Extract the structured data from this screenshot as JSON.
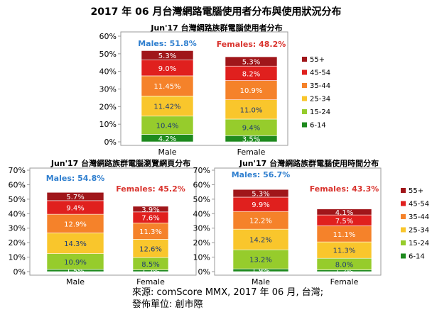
{
  "title": "2017 年 06 月台灣網路電腦使用者分布與使用狀況分布",
  "source_line1": "來源: comScore MMX, 2017 年 06 月, 台灣;",
  "source_line2": "發佈單位: 創市際",
  "legend_labels": [
    "55+",
    "45-54",
    "35-44",
    "25-34",
    "15-24",
    "6-14"
  ],
  "colors": {
    "6-14": "#1e8a1e",
    "15-24": "#96cc2c",
    "25-34": "#f9c62c",
    "35-44": "#f5822a",
    "45-54": "#e0201e",
    "55+": "#a0161a",
    "males_label": "#2f7fcf",
    "females_label": "#d9332d"
  },
  "chart_data": [
    {
      "type": "bar",
      "stacked": true,
      "title": "Jun'17 台灣網路族群電腦使用者分布",
      "categories": [
        "Male",
        "Female"
      ],
      "y_ticks": [
        "0%",
        "10%",
        "20%",
        "30%",
        "40%",
        "50%",
        "60%"
      ],
      "ylim": [
        0,
        60
      ],
      "legend": "right",
      "group_labels": [
        "Males: 51.8%",
        "Females: 48.2%"
      ],
      "series": [
        {
          "name": "6-14",
          "values": [
            4.2,
            3.5
          ],
          "labels": [
            "4.2%",
            "3.5%"
          ]
        },
        {
          "name": "15-24",
          "values": [
            10.4,
            9.4
          ],
          "labels": [
            "10.4%",
            "9.4%"
          ]
        },
        {
          "name": "25-34",
          "values": [
            11.42,
            11.0
          ],
          "labels": [
            "11.42%",
            "11.0%"
          ]
        },
        {
          "name": "35-44",
          "values": [
            11.45,
            10.9
          ],
          "labels": [
            "11.45%",
            "10.9%"
          ]
        },
        {
          "name": "45-54",
          "values": [
            9.0,
            8.2
          ],
          "labels": [
            "9.0%",
            "8.2%"
          ]
        },
        {
          "name": "55+",
          "values": [
            5.3,
            5.3
          ],
          "labels": [
            "5.3%",
            "5.3%"
          ]
        }
      ]
    },
    {
      "type": "bar",
      "stacked": true,
      "title": "Jun'17 台灣網路族群電腦瀏覽網頁分布",
      "categories": [
        "Male",
        "Female"
      ],
      "y_ticks": [
        "0%",
        "10%",
        "20%",
        "30%",
        "40%",
        "50%",
        "60%",
        "70%"
      ],
      "ylim": [
        0,
        70
      ],
      "legend": "none",
      "group_labels": [
        "Males: 54.8%",
        "Females: 45.2%"
      ],
      "series": [
        {
          "name": "6-14",
          "values": [
            1.5,
            1.2
          ],
          "labels": [
            "1.5%",
            "1.2%"
          ]
        },
        {
          "name": "15-24",
          "values": [
            10.9,
            8.5
          ],
          "labels": [
            "10.9%",
            "8.5%"
          ]
        },
        {
          "name": "25-34",
          "values": [
            14.3,
            12.6
          ],
          "labels": [
            "14.3%",
            "12.6%"
          ]
        },
        {
          "name": "35-44",
          "values": [
            12.9,
            11.3
          ],
          "labels": [
            "12.9%",
            "11.3%"
          ]
        },
        {
          "name": "45-54",
          "values": [
            9.4,
            7.6
          ],
          "labels": [
            "9.4%",
            "7.6%"
          ]
        },
        {
          "name": "55+",
          "values": [
            5.7,
            3.9
          ],
          "labels": [
            "5.7%",
            "3.9%"
          ]
        }
      ]
    },
    {
      "type": "bar",
      "stacked": true,
      "title": "Jun'17 台灣網路族群電腦使用時間分布",
      "categories": [
        "Male",
        "Female"
      ],
      "y_ticks": [
        "0%",
        "10%",
        "20%",
        "30%",
        "40%",
        "50%",
        "60%",
        "70%"
      ],
      "ylim": [
        0,
        70
      ],
      "legend": "right",
      "group_labels": [
        "Males: 56.7%",
        "Females: 43.3%"
      ],
      "series": [
        {
          "name": "6-14",
          "values": [
            1.9,
            1.2
          ],
          "labels": [
            "1.9%",
            "1.2%"
          ]
        },
        {
          "name": "15-24",
          "values": [
            13.2,
            8.0
          ],
          "labels": [
            "13.2%",
            "8.0%"
          ]
        },
        {
          "name": "25-34",
          "values": [
            14.2,
            11.3
          ],
          "labels": [
            "14.2%",
            "11.3%"
          ]
        },
        {
          "name": "35-44",
          "values": [
            12.2,
            11.1
          ],
          "labels": [
            "12.2%",
            "11.1%"
          ]
        },
        {
          "name": "45-54",
          "values": [
            9.9,
            7.5
          ],
          "labels": [
            "9.9%",
            "7.5%"
          ]
        },
        {
          "name": "55+",
          "values": [
            5.3,
            4.1
          ],
          "labels": [
            "5.3%",
            "4.1%"
          ]
        }
      ]
    }
  ]
}
